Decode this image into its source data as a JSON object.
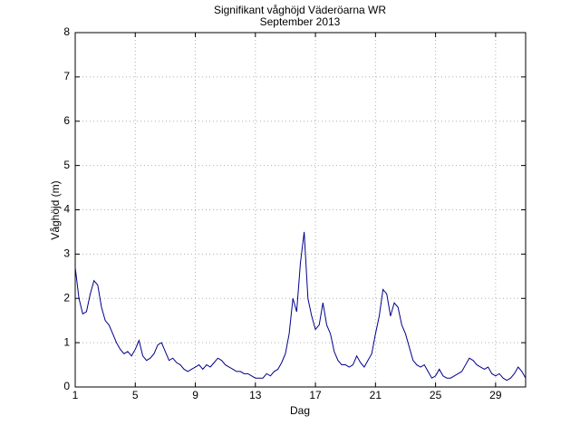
{
  "chart_data": {
    "type": "line",
    "title": "Signifikant våghöjd Väderöarna WR",
    "subtitle": "September 2013",
    "xlabel": "Dag",
    "ylabel": "Våghöjd (m)",
    "xlim": [
      1,
      31
    ],
    "ylim": [
      0,
      8
    ],
    "xticks": [
      1,
      5,
      9,
      13,
      17,
      21,
      25,
      29
    ],
    "yticks": [
      0,
      1,
      2,
      3,
      4,
      5,
      6,
      7,
      8
    ],
    "grid": true,
    "x": [
      1,
      1.25,
      1.5,
      1.75,
      2,
      2.25,
      2.5,
      2.75,
      3,
      3.25,
      3.5,
      3.75,
      4,
      4.25,
      4.5,
      4.75,
      5,
      5.25,
      5.5,
      5.75,
      6,
      6.25,
      6.5,
      6.75,
      7,
      7.25,
      7.5,
      7.75,
      8,
      8.25,
      8.5,
      8.75,
      9,
      9.25,
      9.5,
      9.75,
      10,
      10.25,
      10.5,
      10.75,
      11,
      11.25,
      11.5,
      11.75,
      12,
      12.25,
      12.5,
      12.75,
      13,
      13.25,
      13.5,
      13.75,
      14,
      14.25,
      14.5,
      14.75,
      15,
      15.25,
      15.5,
      15.75,
      16,
      16.25,
      16.5,
      16.75,
      17,
      17.25,
      17.5,
      17.75,
      18,
      18.25,
      18.5,
      18.75,
      19,
      19.25,
      19.5,
      19.75,
      20,
      20.25,
      20.5,
      20.75,
      21,
      21.25,
      21.5,
      21.75,
      22,
      22.25,
      22.5,
      22.75,
      23,
      23.25,
      23.5,
      23.75,
      24,
      24.25,
      24.5,
      24.75,
      25,
      25.25,
      25.5,
      25.75,
      26,
      26.25,
      26.5,
      26.75,
      27,
      27.25,
      27.5,
      27.75,
      28,
      28.25,
      28.5,
      28.75,
      29,
      29.25,
      29.5,
      29.75,
      30,
      30.25,
      30.5,
      30.75,
      31
    ],
    "series": [
      {
        "color": "#00008b",
        "values": [
          2.7,
          2.0,
          1.65,
          1.7,
          2.1,
          2.4,
          2.3,
          1.8,
          1.5,
          1.4,
          1.2,
          1.0,
          0.85,
          0.75,
          0.8,
          0.7,
          0.85,
          1.05,
          0.7,
          0.6,
          0.65,
          0.75,
          0.95,
          1.0,
          0.8,
          0.6,
          0.65,
          0.55,
          0.5,
          0.4,
          0.35,
          0.4,
          0.45,
          0.5,
          0.4,
          0.5,
          0.45,
          0.55,
          0.65,
          0.6,
          0.5,
          0.45,
          0.4,
          0.35,
          0.35,
          0.3,
          0.3,
          0.25,
          0.2,
          0.2,
          0.2,
          0.3,
          0.25,
          0.35,
          0.4,
          0.55,
          0.75,
          1.2,
          2.0,
          1.7,
          2.8,
          3.5,
          2.0,
          1.6,
          1.3,
          1.4,
          1.9,
          1.4,
          1.2,
          0.8,
          0.6,
          0.5,
          0.5,
          0.45,
          0.5,
          0.7,
          0.55,
          0.45,
          0.6,
          0.75,
          1.2,
          1.6,
          2.2,
          2.1,
          1.6,
          1.9,
          1.8,
          1.4,
          1.2,
          0.9,
          0.6,
          0.5,
          0.45,
          0.5,
          0.35,
          0.2,
          0.25,
          0.4,
          0.25,
          0.2,
          0.2,
          0.25,
          0.3,
          0.35,
          0.5,
          0.65,
          0.6,
          0.5,
          0.45,
          0.4,
          0.45,
          0.3,
          0.25,
          0.3,
          0.2,
          0.15,
          0.2,
          0.3,
          0.45,
          0.35,
          0.2
        ]
      }
    ]
  }
}
